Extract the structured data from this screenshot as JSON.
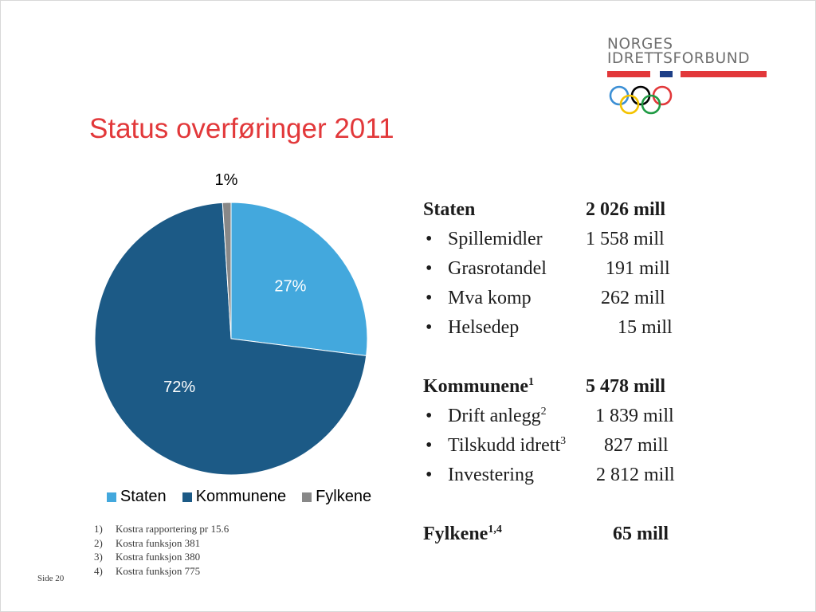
{
  "logo": {
    "line1": "NORGES",
    "line2": "IDRETTSFORBUND",
    "bar_colors": [
      "#e2383a",
      "#1d3f87",
      "#e2383a"
    ],
    "ring_colors": [
      "#3b8fd5",
      "#000000",
      "#e2383a",
      "#f4c300",
      "#1f9a43"
    ]
  },
  "title": "Status overføringer 2011",
  "chart_data": {
    "type": "pie",
    "title": "",
    "categories": [
      "Staten",
      "Kommunene",
      "Fylkene"
    ],
    "values": [
      27,
      72,
      1
    ],
    "data_labels": [
      "27%",
      "72%",
      "1%"
    ],
    "colors": [
      "#43a8dd",
      "#1c5a86",
      "#888888"
    ],
    "legend_position": "bottom",
    "start_angle_deg": 0,
    "direction": "clockwise"
  },
  "stats": {
    "sections": [
      {
        "label": "Staten",
        "value": "2 026 mill",
        "sup": "",
        "items": [
          {
            "label": "Spillemidler",
            "value": "1 558 mill",
            "sup": ""
          },
          {
            "label": "Grasrotandel",
            "value": "191 mill",
            "sup": ""
          },
          {
            "label": "Mva komp",
            "value": "262 mill",
            "sup": ""
          },
          {
            "label": "Helsedep",
            "value": "15 mill",
            "sup": ""
          }
        ]
      },
      {
        "label": "Kommunene",
        "value": "5 478 mill",
        "sup": "1",
        "items": [
          {
            "label": "Drift anlegg",
            "value": "1 839 mill",
            "sup": "2"
          },
          {
            "label": "Tilskudd idrett",
            "value": "827 mill",
            "sup": "3"
          },
          {
            "label": "Investering",
            "value": "2 812 mill",
            "sup": ""
          }
        ]
      },
      {
        "label": "Fylkene",
        "value": "65 mill",
        "sup": "1,4",
        "items": []
      }
    ],
    "bullet": "•"
  },
  "footnotes": [
    {
      "num": "1)",
      "text": "Kostra rapportering pr 15.6"
    },
    {
      "num": "2)",
      "text": "Kostra funksjon 381"
    },
    {
      "num": "3)",
      "text": "Kostra funksjon 380"
    },
    {
      "num": "4)",
      "text": "Kostra funksjon 775"
    }
  ],
  "page_label": "Side 20"
}
